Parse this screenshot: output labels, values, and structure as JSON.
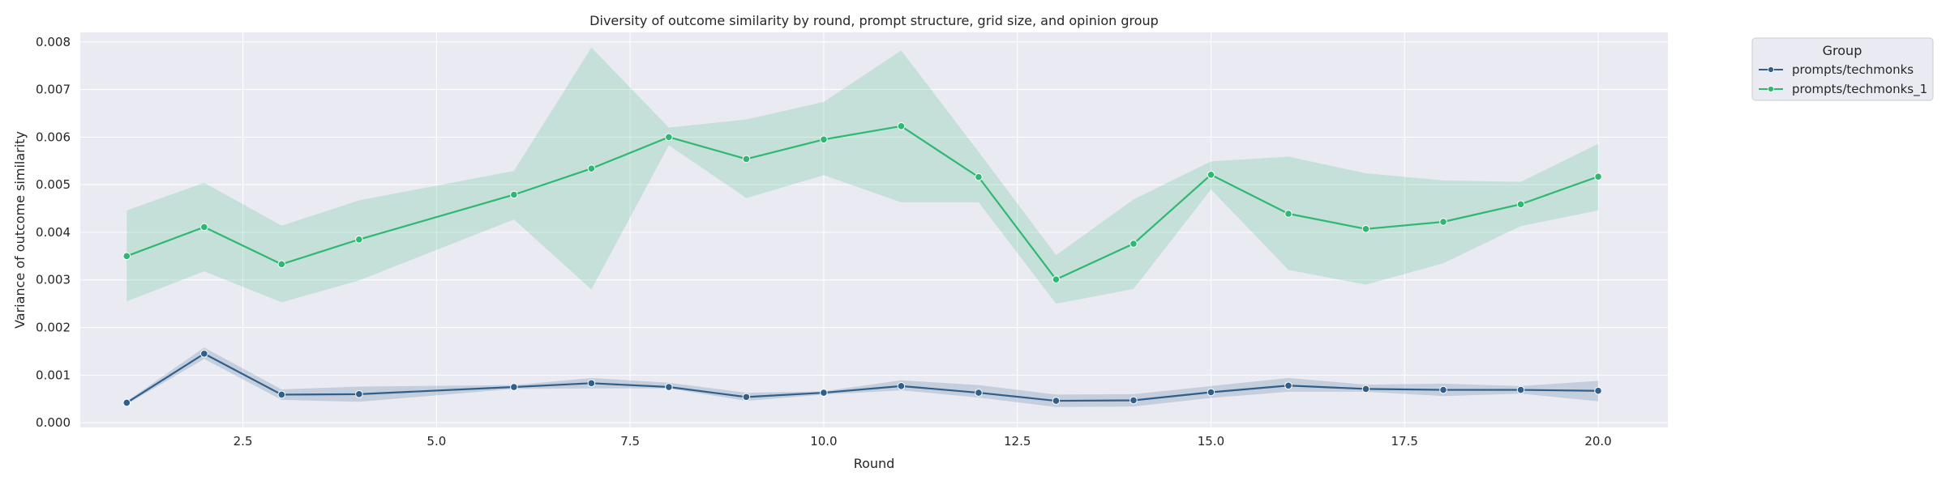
{
  "chart_data": {
    "type": "line",
    "title": "Diversity of outcome similarity by round, prompt structure, grid size, and opinion group",
    "xlabel": "Round",
    "ylabel": "Variance of outcome similarity",
    "xlim": [
      0.4,
      20.9
    ],
    "ylim": [
      -0.0001,
      0.0082
    ],
    "x_ticks": [
      2.5,
      5.0,
      7.5,
      10.0,
      12.5,
      15.0,
      17.5,
      20.0
    ],
    "x_tick_labels": [
      "2.5",
      "5.0",
      "7.5",
      "10.0",
      "12.5",
      "15.0",
      "17.5",
      "20.0"
    ],
    "y_ticks": [
      0,
      0.001,
      0.002,
      0.003,
      0.004,
      0.005,
      0.006,
      0.007,
      0.008
    ],
    "y_tick_labels": [
      "0.000",
      "0.001",
      "0.002",
      "0.003",
      "0.004",
      "0.005",
      "0.006",
      "0.007",
      "0.008"
    ],
    "grid": true,
    "legend": {
      "title": "Group",
      "placement": "outside-top-right"
    },
    "x": [
      1,
      2,
      3,
      4,
      6,
      7,
      8,
      9,
      10,
      11,
      12,
      13,
      14,
      15,
      16,
      17,
      18,
      19,
      20
    ],
    "series": [
      {
        "name": "prompts/techmonks",
        "color": "#2f5f8a",
        "values": [
          0.00042,
          0.00145,
          0.00059,
          0.0006,
          0.00075,
          0.00083,
          0.00075,
          0.00054,
          0.00063,
          0.00077,
          0.00063,
          0.00046,
          0.00047,
          0.00064,
          0.00078,
          0.00071,
          0.00069,
          0.00069,
          0.00067
        ],
        "ci_lower": [
          0.00039,
          0.00134,
          0.00048,
          0.00044,
          0.00071,
          0.00072,
          0.00072,
          0.00046,
          0.00059,
          0.00068,
          0.00053,
          0.00033,
          0.00034,
          0.00052,
          0.00065,
          0.00065,
          0.00056,
          0.00061,
          0.00045
        ],
        "ci_upper": [
          0.00045,
          0.00158,
          0.0007,
          0.00076,
          0.00079,
          0.00094,
          0.00084,
          0.00063,
          0.00066,
          0.00089,
          0.00079,
          0.00059,
          0.0006,
          0.00077,
          0.00094,
          0.0008,
          0.00082,
          0.00077,
          0.00088
        ]
      },
      {
        "name": "prompts/techmonks_1",
        "color": "#2eb872",
        "values": [
          0.0035,
          0.00411,
          0.00333,
          0.00385,
          0.00479,
          0.00534,
          0.006,
          0.00554,
          0.00595,
          0.00623,
          0.00516,
          0.00301,
          0.00376,
          0.00521,
          0.00439,
          0.00407,
          0.00422,
          0.00459,
          0.00517
        ],
        "ci_lower": [
          0.00255,
          0.00318,
          0.00253,
          0.00299,
          0.00427,
          0.0028,
          0.00583,
          0.00472,
          0.0052,
          0.00463,
          0.00463,
          0.0025,
          0.00281,
          0.0049,
          0.00321,
          0.0029,
          0.00335,
          0.00413,
          0.00446
        ],
        "ci_upper": [
          0.00446,
          0.00504,
          0.00414,
          0.00467,
          0.00529,
          0.00788,
          0.0062,
          0.00637,
          0.00674,
          0.00782,
          0.00569,
          0.00352,
          0.00469,
          0.00549,
          0.00559,
          0.00524,
          0.00509,
          0.00506,
          0.00586
        ]
      }
    ]
  }
}
